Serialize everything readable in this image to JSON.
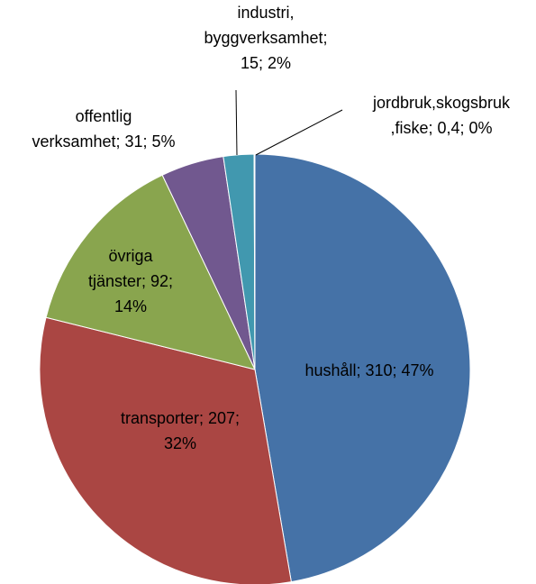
{
  "chart_data": {
    "type": "pie",
    "values": [
      310,
      207,
      92,
      31,
      15,
      0.4
    ],
    "value_labels": [
      "hushåll; 310; 47%",
      "transporter; 207;\n32%",
      "övriga\ntjänster; 92;\n14%",
      "offentlig\nverksamhet; 31; 5%",
      "industri,\nbyggverksamhet;\n15; 2%",
      "jordbruk,skogsbruk\n,fiske; 0,4; 0%"
    ],
    "colors": [
      "#4572a7",
      "#aa4643",
      "#89a54e",
      "#71588f",
      "#4198af",
      "#db843d"
    ]
  }
}
